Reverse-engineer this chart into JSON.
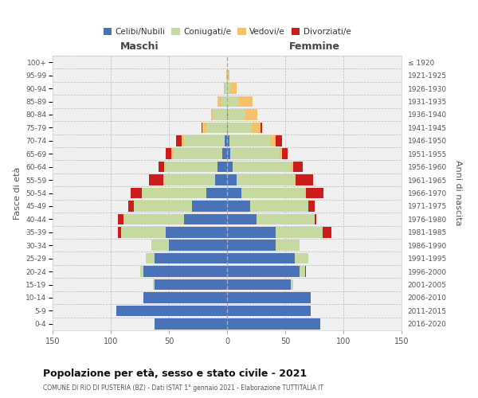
{
  "age_groups": [
    "0-4",
    "5-9",
    "10-14",
    "15-19",
    "20-24",
    "25-29",
    "30-34",
    "35-39",
    "40-44",
    "45-49",
    "50-54",
    "55-59",
    "60-64",
    "65-69",
    "70-74",
    "75-79",
    "80-84",
    "85-89",
    "90-94",
    "95-99",
    "100+"
  ],
  "birth_years": [
    "2016-2020",
    "2011-2015",
    "2006-2010",
    "2001-2005",
    "1996-2000",
    "1991-1995",
    "1986-1990",
    "1981-1985",
    "1976-1980",
    "1971-1975",
    "1966-1970",
    "1961-1965",
    "1956-1960",
    "1951-1955",
    "1946-1950",
    "1941-1945",
    "1936-1940",
    "1931-1935",
    "1926-1930",
    "1921-1925",
    "≤ 1920"
  ],
  "males": {
    "celibe": [
      62,
      95,
      72,
      62,
      72,
      62,
      50,
      53,
      37,
      30,
      18,
      10,
      8,
      4,
      2,
      0,
      0,
      0,
      0,
      0,
      0
    ],
    "coniugato": [
      0,
      0,
      0,
      2,
      3,
      8,
      15,
      38,
      52,
      50,
      55,
      45,
      45,
      42,
      35,
      18,
      12,
      5,
      2,
      1,
      0
    ],
    "vedovo": [
      0,
      0,
      0,
      0,
      0,
      0,
      0,
      0,
      0,
      0,
      0,
      0,
      1,
      2,
      2,
      3,
      2,
      3,
      1,
      0,
      0
    ],
    "divorziato": [
      0,
      0,
      0,
      0,
      0,
      0,
      0,
      3,
      5,
      5,
      10,
      12,
      5,
      5,
      5,
      1,
      0,
      0,
      0,
      0,
      0
    ]
  },
  "females": {
    "nubile": [
      80,
      72,
      72,
      55,
      62,
      58,
      42,
      42,
      25,
      20,
      12,
      8,
      5,
      3,
      2,
      1,
      1,
      0,
      0,
      0,
      0
    ],
    "coniugata": [
      0,
      0,
      0,
      2,
      5,
      12,
      20,
      40,
      50,
      50,
      55,
      50,
      50,
      42,
      35,
      20,
      15,
      10,
      3,
      1,
      0
    ],
    "vedova": [
      0,
      0,
      0,
      0,
      0,
      0,
      0,
      0,
      0,
      0,
      1,
      1,
      2,
      2,
      5,
      8,
      10,
      12,
      5,
      1,
      0
    ],
    "divorziata": [
      0,
      0,
      0,
      0,
      1,
      0,
      0,
      8,
      2,
      5,
      15,
      15,
      8,
      5,
      5,
      1,
      0,
      0,
      0,
      0,
      0
    ]
  },
  "colors": {
    "celibe": "#4a72b8",
    "coniugato": "#c5d9a0",
    "vedovo": "#f4c26a",
    "divorziato": "#cc1c1c"
  },
  "xlim": 150,
  "title": "Popolazione per età, sesso e stato civile - 2021",
  "subtitle": "COMUNE DI RIO DI PUSTERIA (BZ) - Dati ISTAT 1° gennaio 2021 - Elaborazione TUTTITALIA.IT",
  "ylabel": "Fasce di età",
  "ylabel_right": "Anni di nascita",
  "label_maschi": "Maschi",
  "label_femmine": "Femmine",
  "bg_color": "#f0f0f0",
  "grid_color": "#bbbbbb"
}
